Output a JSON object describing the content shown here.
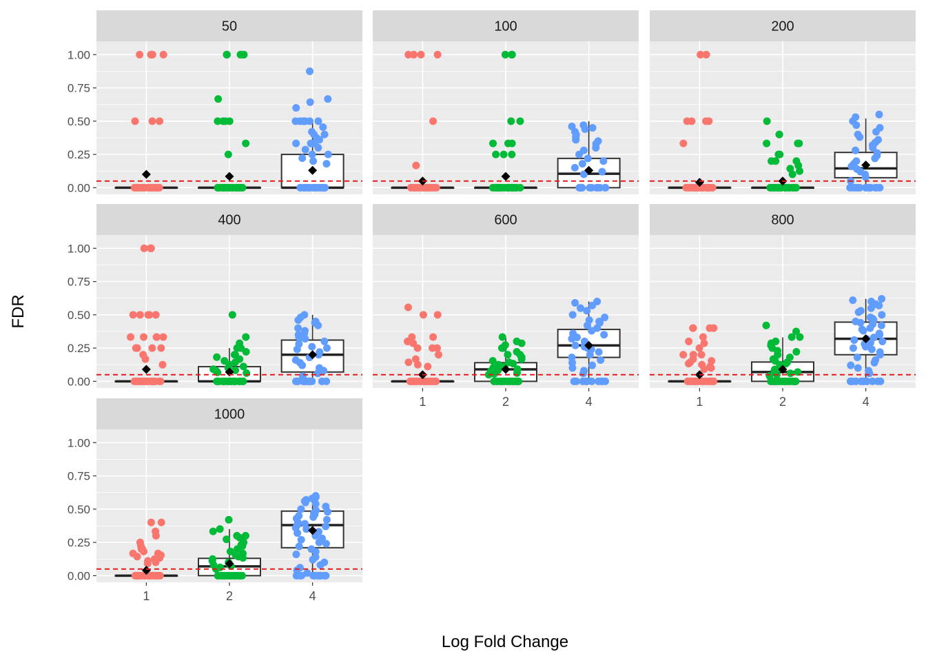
{
  "chart_data": {
    "type": "boxplot-jitter (faceted)",
    "xlabel": "Log Fold Change",
    "ylabel": "FDR",
    "x_categories": [
      "1",
      "2",
      "4"
    ],
    "y_ticks": [
      "0.00",
      "0.25",
      "0.50",
      "0.75",
      "1.00"
    ],
    "ylim": [
      -0.05,
      1.1
    ],
    "reference_line": {
      "y": 0.05,
      "color": "#E41A1C",
      "style": "dashed"
    },
    "colors": {
      "1": "#F8766D",
      "2": "#00BA38",
      "4": "#619CFF",
      "mean_marker": "#000000",
      "panel_bg": "#EBEBEB",
      "strip_bg": "#D9D9D9"
    },
    "facet_columns": 3,
    "facets": [
      {
        "label": "50",
        "groups": [
          {
            "x": "1",
            "q1": 0.0,
            "median": 0.0,
            "q3": 0.0,
            "whisker_low": 0.0,
            "whisker_high": 0.0,
            "mean": 0.1
          },
          {
            "x": "2",
            "q1": 0.0,
            "median": 0.0,
            "q3": 0.0,
            "whisker_low": 0.0,
            "whisker_high": 0.0,
            "mean": 0.085
          },
          {
            "x": "4",
            "q1": 0.0,
            "median": 0.0,
            "q3": 0.25,
            "whisker_low": 0.0,
            "whisker_high": 0.5,
            "mean": 0.13
          }
        ],
        "points": {
          "1": [
            1.0,
            1.0,
            1.0,
            1.0,
            1.0,
            0.5,
            0.5,
            0.5
          ],
          "2": [
            1.0,
            1.0,
            1.0,
            1.0,
            1.0,
            0.667,
            0.5,
            0.5,
            0.5,
            0.5,
            0.333,
            0.25
          ],
          "4": [
            0.875,
            0.667,
            0.643,
            0.6,
            0.5,
            0.5,
            0.5,
            0.5,
            0.5,
            0.5,
            0.5,
            0.5,
            0.455,
            0.42,
            0.4,
            0.4,
            0.375,
            0.36,
            0.333,
            0.333,
            0.333,
            0.333,
            0.3,
            0.286,
            0.25,
            0.25,
            0.222,
            0.2,
            0.18
          ]
        }
      },
      {
        "label": "100",
        "groups": [
          {
            "x": "1",
            "q1": 0.0,
            "median": 0.0,
            "q3": 0.0,
            "whisker_low": 0.0,
            "whisker_high": 0.0,
            "mean": 0.05
          },
          {
            "x": "2",
            "q1": 0.0,
            "median": 0.0,
            "q3": 0.0,
            "whisker_low": 0.0,
            "whisker_high": 0.0,
            "mean": 0.085
          },
          {
            "x": "4",
            "q1": 0.0,
            "median": 0.105,
            "q3": 0.22,
            "whisker_low": 0.0,
            "whisker_high": 0.5,
            "mean": 0.13
          }
        ],
        "points": {
          "1": [
            1.0,
            1.0,
            1.0,
            1.0,
            0.5,
            0.167
          ],
          "2": [
            1.0,
            1.0,
            1.0,
            0.5,
            0.5,
            0.333,
            0.333,
            0.333,
            0.25,
            0.25,
            0.25
          ],
          "4": [
            0.47,
            0.46,
            0.45,
            0.44,
            0.42,
            0.4,
            0.38,
            0.36,
            0.35,
            0.33,
            0.3,
            0.28,
            0.25,
            0.22,
            0.2,
            0.18,
            0.15,
            0.12,
            0.1
          ]
        }
      },
      {
        "label": "200",
        "groups": [
          {
            "x": "1",
            "q1": 0.0,
            "median": 0.0,
            "q3": 0.0,
            "whisker_low": 0.0,
            "whisker_high": 0.0,
            "mean": 0.04
          },
          {
            "x": "2",
            "q1": 0.0,
            "median": 0.0,
            "q3": 0.0,
            "whisker_low": 0.0,
            "whisker_high": 0.0,
            "mean": 0.05
          },
          {
            "x": "4",
            "q1": 0.075,
            "median": 0.145,
            "q3": 0.265,
            "whisker_low": 0.0,
            "whisker_high": 0.52,
            "mean": 0.17
          }
        ],
        "points": {
          "1": [
            1.0,
            1.0,
            0.5,
            0.5,
            0.5,
            0.5,
            0.333
          ],
          "2": [
            0.5,
            0.4,
            0.4,
            0.333,
            0.333,
            0.333,
            0.25,
            0.25,
            0.2,
            0.2,
            0.2,
            0.167,
            0.143,
            0.125,
            0.1
          ],
          "4": [
            0.55,
            0.53,
            0.5,
            0.47,
            0.45,
            0.42,
            0.4,
            0.38,
            0.36,
            0.34,
            0.32,
            0.3,
            0.28,
            0.26,
            0.24,
            0.22,
            0.2,
            0.18,
            0.16,
            0.14,
            0.12,
            0.1,
            0.08,
            0.05
          ]
        }
      },
      {
        "label": "400",
        "groups": [
          {
            "x": "1",
            "q1": 0.0,
            "median": 0.0,
            "q3": 0.0,
            "whisker_low": 0.0,
            "whisker_high": 0.0,
            "mean": 0.09
          },
          {
            "x": "2",
            "q1": 0.0,
            "median": 0.0,
            "q3": 0.11,
            "whisker_low": 0.0,
            "whisker_high": 0.25,
            "mean": 0.07
          },
          {
            "x": "4",
            "q1": 0.07,
            "median": 0.2,
            "q3": 0.31,
            "whisker_low": 0.0,
            "whisker_high": 0.5,
            "mean": 0.2
          }
        ],
        "points": {
          "1": [
            1.0,
            1.0,
            1.0,
            0.5,
            0.5,
            0.5,
            0.5,
            0.5,
            0.333,
            0.333,
            0.333,
            0.333,
            0.333,
            0.25,
            0.25,
            0.25,
            0.25,
            0.2,
            0.167,
            0.125
          ],
          "2": [
            0.5,
            0.333,
            0.286,
            0.25,
            0.25,
            0.222,
            0.2,
            0.2,
            0.182,
            0.167,
            0.154,
            0.143,
            0.125,
            0.111,
            0.1,
            0.091,
            0.083,
            0.077,
            0.067,
            0.062
          ],
          "4": [
            0.5,
            0.48,
            0.46,
            0.45,
            0.44,
            0.42,
            0.4,
            0.38,
            0.36,
            0.35,
            0.34,
            0.33,
            0.32,
            0.3,
            0.28,
            0.26,
            0.25,
            0.24,
            0.22,
            0.2,
            0.18,
            0.16,
            0.14,
            0.12,
            0.1,
            0.08,
            0.06,
            0.04
          ]
        }
      },
      {
        "label": "600",
        "groups": [
          {
            "x": "1",
            "q1": 0.0,
            "median": 0.0,
            "q3": 0.0,
            "whisker_low": 0.0,
            "whisker_high": 0.0,
            "mean": 0.05
          },
          {
            "x": "2",
            "q1": 0.0,
            "median": 0.09,
            "q3": 0.14,
            "whisker_low": 0.0,
            "whisker_high": 0.33,
            "mean": 0.09
          },
          {
            "x": "4",
            "q1": 0.18,
            "median": 0.27,
            "q3": 0.39,
            "whisker_low": 0.0,
            "whisker_high": 0.6,
            "mean": 0.27
          }
        ],
        "points": {
          "1": [
            0.556,
            0.5,
            0.5,
            0.333,
            0.333,
            0.3,
            0.286,
            0.25,
            0.25,
            0.25,
            0.2,
            0.167,
            0.143,
            0.125,
            0.111
          ],
          "2": [
            0.333,
            0.3,
            0.286,
            0.273,
            0.25,
            0.25,
            0.222,
            0.2,
            0.2,
            0.182,
            0.167,
            0.154,
            0.143,
            0.133,
            0.125,
            0.111,
            0.1,
            0.091,
            0.083,
            0.077,
            0.071,
            0.062,
            0.056,
            0.05
          ],
          "4": [
            0.6,
            0.59,
            0.57,
            0.55,
            0.53,
            0.5,
            0.48,
            0.46,
            0.45,
            0.44,
            0.42,
            0.4,
            0.38,
            0.36,
            0.35,
            0.33,
            0.32,
            0.3,
            0.28,
            0.27,
            0.26,
            0.25,
            0.24,
            0.22,
            0.2,
            0.18,
            0.16,
            0.14,
            0.12,
            0.1,
            0.08,
            0.06
          ]
        }
      },
      {
        "label": "800",
        "groups": [
          {
            "x": "1",
            "q1": 0.0,
            "median": 0.0,
            "q3": 0.0,
            "whisker_low": 0.0,
            "whisker_high": 0.0,
            "mean": 0.05
          },
          {
            "x": "2",
            "q1": 0.0,
            "median": 0.07,
            "q3": 0.145,
            "whisker_low": 0.0,
            "whisker_high": 0.33,
            "mean": 0.09
          },
          {
            "x": "4",
            "q1": 0.2,
            "median": 0.32,
            "q3": 0.445,
            "whisker_low": 0.0,
            "whisker_high": 0.62,
            "mean": 0.32
          }
        ],
        "points": {
          "1": [
            0.4,
            0.4,
            0.4,
            0.4,
            0.333,
            0.3,
            0.286,
            0.25,
            0.2,
            0.2,
            0.2,
            0.167,
            0.154,
            0.143,
            0.133,
            0.125,
            0.111,
            0.1,
            0.091
          ],
          "2": [
            0.42,
            0.375,
            0.333,
            0.333,
            0.3,
            0.286,
            0.27,
            0.25,
            0.23,
            0.222,
            0.2,
            0.18,
            0.167,
            0.154,
            0.143,
            0.133,
            0.125,
            0.111,
            0.1,
            0.09,
            0.08,
            0.07,
            0.06,
            0.05,
            0.04
          ],
          "4": [
            0.62,
            0.61,
            0.6,
            0.58,
            0.57,
            0.55,
            0.53,
            0.52,
            0.5,
            0.48,
            0.47,
            0.46,
            0.45,
            0.44,
            0.43,
            0.42,
            0.4,
            0.39,
            0.38,
            0.36,
            0.35,
            0.33,
            0.32,
            0.31,
            0.3,
            0.29,
            0.28,
            0.26,
            0.25,
            0.24,
            0.22,
            0.2,
            0.18,
            0.16,
            0.14,
            0.12,
            0.1,
            0.08,
            0.06
          ]
        }
      },
      {
        "label": "1000",
        "groups": [
          {
            "x": "1",
            "q1": 0.0,
            "median": 0.0,
            "q3": 0.0,
            "whisker_low": 0.0,
            "whisker_high": 0.0,
            "mean": 0.04
          },
          {
            "x": "2",
            "q1": 0.0,
            "median": 0.07,
            "q3": 0.13,
            "whisker_low": 0.0,
            "whisker_high": 0.35,
            "mean": 0.09
          },
          {
            "x": "4",
            "q1": 0.21,
            "median": 0.38,
            "q3": 0.485,
            "whisker_low": 0.0,
            "whisker_high": 0.6,
            "mean": 0.34
          }
        ],
        "points": {
          "1": [
            0.4,
            0.4,
            0.333,
            0.3,
            0.25,
            0.222,
            0.2,
            0.2,
            0.182,
            0.167,
            0.167,
            0.154,
            0.143,
            0.133,
            0.125,
            0.111,
            0.1,
            0.091
          ],
          "2": [
            0.42,
            0.35,
            0.333,
            0.3,
            0.3,
            0.286,
            0.273,
            0.25,
            0.231,
            0.222,
            0.2,
            0.182,
            0.167,
            0.154,
            0.143,
            0.133,
            0.125,
            0.111,
            0.1,
            0.09,
            0.08,
            0.071,
            0.062,
            0.05
          ],
          "4": [
            0.6,
            0.59,
            0.58,
            0.57,
            0.56,
            0.55,
            0.54,
            0.52,
            0.5,
            0.49,
            0.48,
            0.47,
            0.46,
            0.45,
            0.44,
            0.43,
            0.42,
            0.4,
            0.39,
            0.38,
            0.37,
            0.36,
            0.35,
            0.33,
            0.32,
            0.3,
            0.28,
            0.27,
            0.25,
            0.24,
            0.22,
            0.2,
            0.18,
            0.16,
            0.14,
            0.12,
            0.1,
            0.08,
            0.06,
            0.04,
            0.02
          ]
        }
      }
    ]
  }
}
